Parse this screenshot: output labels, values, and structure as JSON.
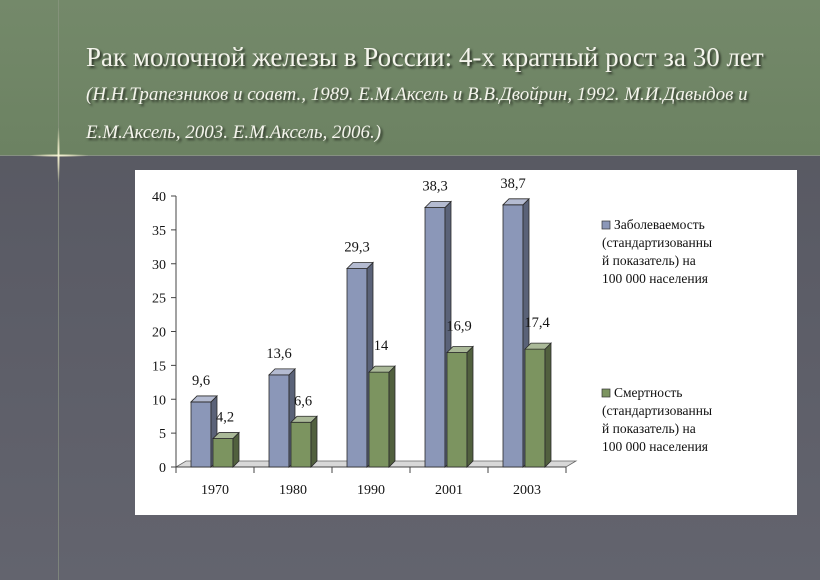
{
  "slide": {
    "title_main": "Рак молочной железы в России: 4-х кратный рост за 30 лет",
    "title_citation": "(Н.Н.Трапезников и соавт., 1989. Е.М.Аксель и В.В.Двойрин, 1992. М.И.Давыдов и Е.М.Аксель, 2003. Е.М.Аксель, 2006.)"
  },
  "chart_data": {
    "type": "bar",
    "categories": [
      "1970",
      "1980",
      "1990",
      "2001",
      "2003"
    ],
    "series": [
      {
        "name": "Заболеваемость (стандартизованный показатель) на 100 000 населения",
        "legend_lines": [
          "Заболеваемость",
          "(стандартизованны",
          "й показатель) на",
          "100 000 населения"
        ],
        "values": [
          9.6,
          13.6,
          29.3,
          38.3,
          38.7
        ],
        "labels": [
          "9,6",
          "13,6",
          "29,3",
          "38,3",
          "38,7"
        ],
        "color": "#8b97b8"
      },
      {
        "name": "Смертность (стандартизованный показатель) на 100 000 населения",
        "legend_lines": [
          "Смертность",
          "(стандартизованны",
          "й показатель) на",
          "100 000 населения"
        ],
        "values": [
          4.2,
          6.6,
          14,
          16.9,
          17.4
        ],
        "labels": [
          "4,2",
          "6,6",
          "14",
          "16,9",
          "17,4"
        ],
        "color": "#7c9460"
      }
    ],
    "ylim": [
      0,
      40
    ],
    "yticks": [
      0,
      5,
      10,
      15,
      20,
      25,
      30,
      35,
      40
    ],
    "legend_position": "right",
    "grid": false,
    "style": "3d-bar",
    "plot_background": "#ffffff"
  }
}
